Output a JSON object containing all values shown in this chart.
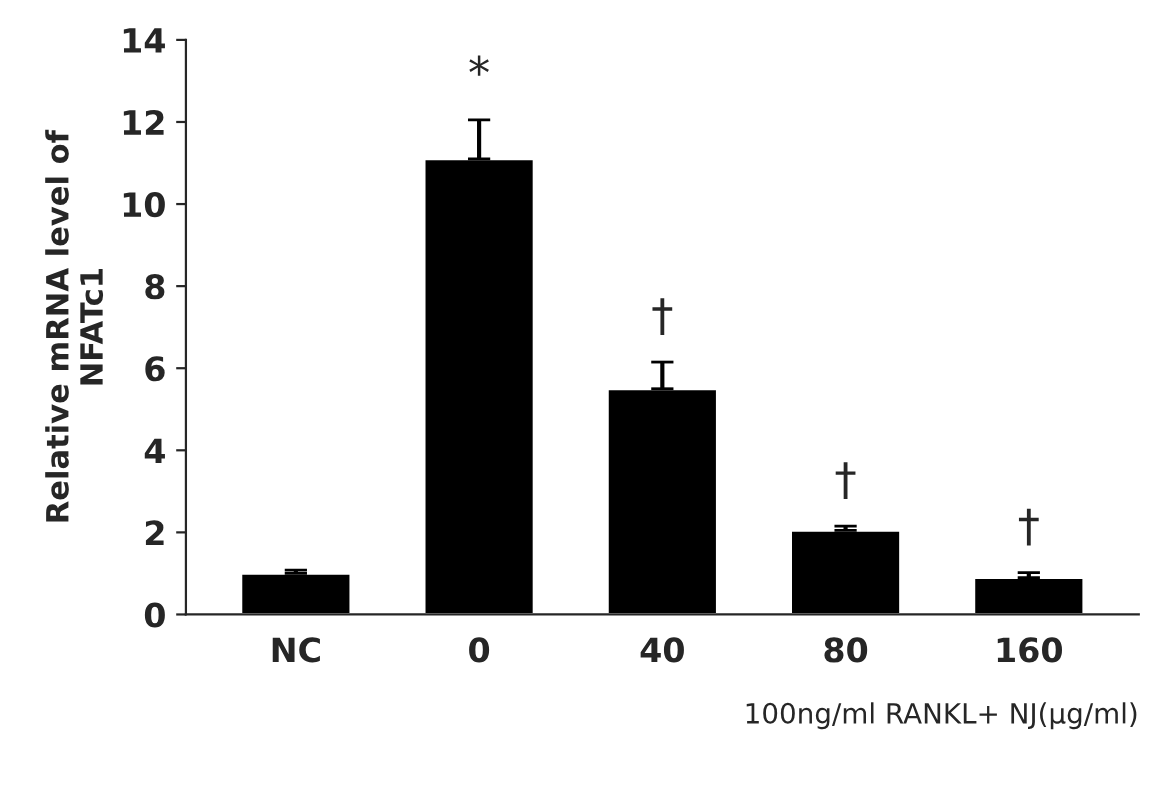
{
  "chart_data": {
    "type": "bar",
    "categories": [
      "NC",
      "0",
      "40",
      "80",
      "160"
    ],
    "values": [
      1.0,
      11.1,
      5.5,
      2.05,
      0.9
    ],
    "errors": [
      0.08,
      0.95,
      0.65,
      0.1,
      0.12
    ],
    "color": "#000000",
    "ylabel": "Relative mRNA level of\nNFATc1",
    "xlabel": "100ng/ml RANKL+ NJ(μg/ml)",
    "ylim": [
      0,
      14
    ],
    "yticks": [
      0,
      2,
      4,
      6,
      8,
      10,
      12,
      14
    ],
    "grid": false,
    "annotations": [
      "*",
      "†",
      "†",
      "†"
    ]
  }
}
